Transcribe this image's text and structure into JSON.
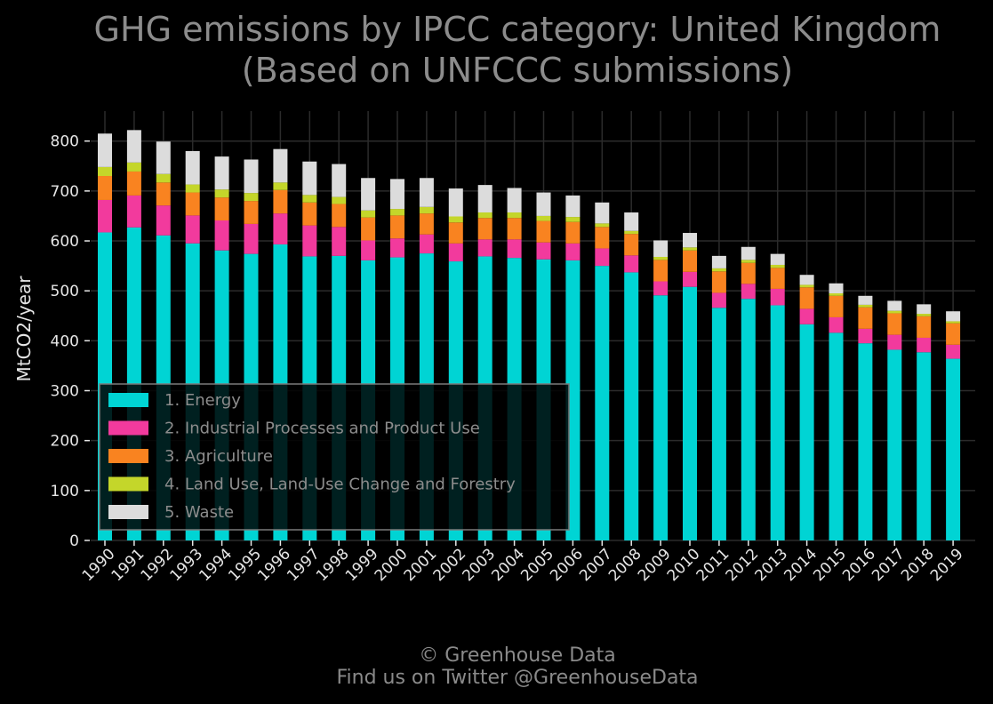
{
  "title_line1": "GHG emissions by IPCC category: United Kingdom",
  "title_line2": "(Based on UNFCCC submissions)",
  "footer": {
    "line1": "© Greenhouse Data",
    "line2": "Find us on Twitter @GreenhouseData"
  },
  "chart_data": {
    "type": "bar",
    "stacked": true,
    "ylabel": "MtCO2/year",
    "xlabel": "",
    "ylim": [
      0,
      860
    ],
    "yticks": [
      0,
      100,
      200,
      300,
      400,
      500,
      600,
      700,
      800
    ],
    "grid": true,
    "legend_position": "bottom-left",
    "categories": [
      "1990",
      "1991",
      "1992",
      "1993",
      "1994",
      "1995",
      "1996",
      "1997",
      "1998",
      "1999",
      "2000",
      "2001",
      "2002",
      "2003",
      "2004",
      "2005",
      "2006",
      "2007",
      "2008",
      "2009",
      "2010",
      "2011",
      "2012",
      "2013",
      "2014",
      "2015",
      "2016",
      "2017",
      "2018",
      "2019"
    ],
    "series": [
      {
        "name": "1. Energy",
        "color": "#00d4d4",
        "values": [
          617,
          627,
          611,
          595,
          581,
          574,
          593,
          569,
          570,
          561,
          567,
          575,
          559,
          569,
          566,
          563,
          561,
          550,
          537,
          491,
          508,
          466,
          484,
          471,
          433,
          416,
          395,
          382,
          377,
          364
        ]
      },
      {
        "name": "2. Industrial Processes and Product Use",
        "color": "#f23a9d",
        "values": [
          65,
          64,
          60,
          56,
          60,
          60,
          62,
          62,
          58,
          40,
          38,
          38,
          36,
          34,
          37,
          34,
          34,
          35,
          34,
          28,
          30,
          30,
          30,
          33,
          31,
          31,
          29,
          30,
          29,
          28
        ]
      },
      {
        "name": "3. Agriculture",
        "color": "#f98320",
        "values": [
          48,
          48,
          46,
          46,
          46,
          46,
          47,
          46,
          46,
          46,
          46,
          42,
          42,
          43,
          43,
          43,
          43,
          43,
          43,
          43,
          43,
          43,
          42,
          42,
          43,
          43,
          43,
          43,
          43,
          43
        ]
      },
      {
        "name": "4. Land Use, Land-Use Change and Forestry",
        "color": "#c4d62a",
        "values": [
          18,
          18,
          17,
          16,
          16,
          16,
          15,
          15,
          14,
          14,
          13,
          13,
          12,
          11,
          11,
          10,
          10,
          7,
          6,
          6,
          6,
          6,
          6,
          6,
          5,
          5,
          5,
          5,
          5,
          4
        ]
      },
      {
        "name": "5. Waste",
        "color": "#dcdcdc",
        "values": [
          67,
          65,
          65,
          67,
          66,
          67,
          67,
          67,
          66,
          65,
          60,
          58,
          56,
          55,
          49,
          47,
          43,
          42,
          37,
          33,
          29,
          25,
          26,
          22,
          20,
          20,
          18,
          20,
          19,
          20
        ]
      }
    ]
  }
}
